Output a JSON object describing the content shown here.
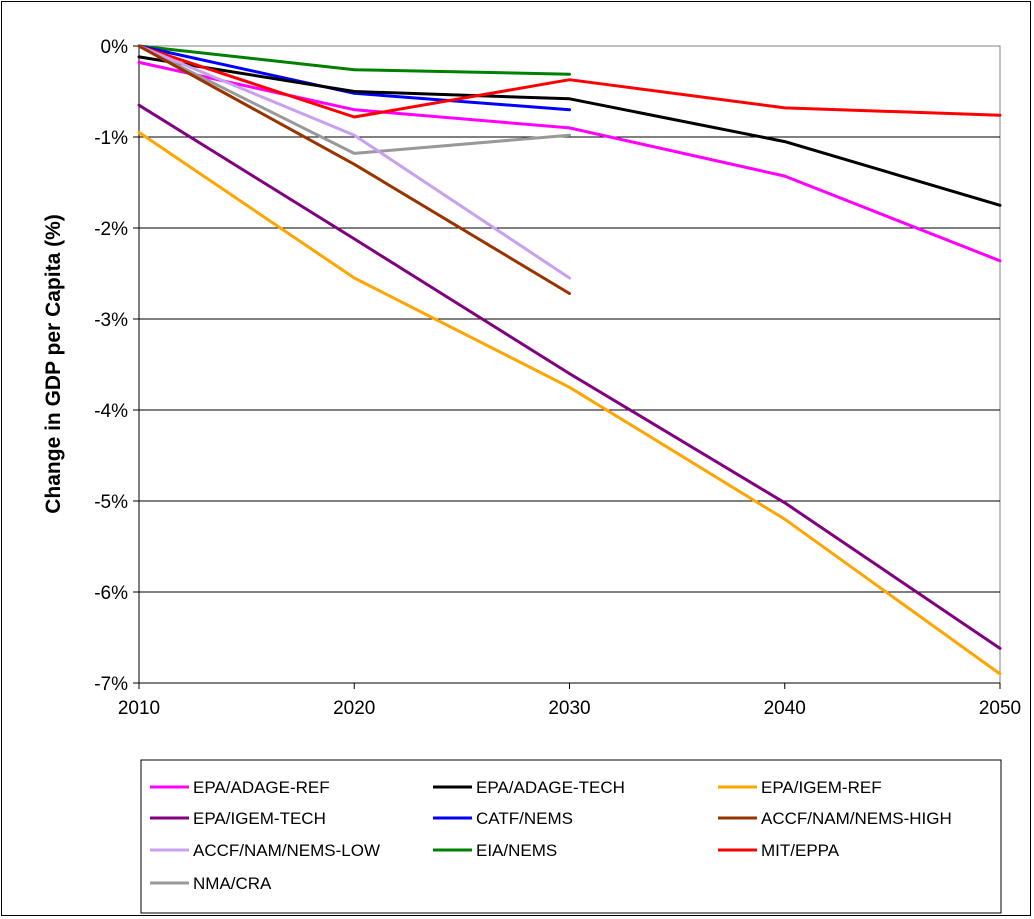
{
  "chart_data": {
    "type": "line",
    "title": "",
    "xlabel": "",
    "ylabel": "Change in GDP per Capita (%)",
    "x": [
      2010,
      2020,
      2030,
      2040,
      2050
    ],
    "x_ticks": [
      "2010",
      "2020",
      "2030",
      "2040",
      "2050"
    ],
    "y_ticks": [
      {
        "value": 0,
        "label": "0%"
      },
      {
        "value": -1,
        "label": "-1%"
      },
      {
        "value": -2,
        "label": "-2%"
      },
      {
        "value": -3,
        "label": "-3%"
      },
      {
        "value": -4,
        "label": "-4%"
      },
      {
        "value": -5,
        "label": "-5%"
      },
      {
        "value": -6,
        "label": "-6%"
      },
      {
        "value": -7,
        "label": "-7%"
      }
    ],
    "xlim": [
      2010,
      2050
    ],
    "ylim": [
      -7,
      0
    ],
    "grid": "horizontal",
    "legend_position": "bottom",
    "series": [
      {
        "name": "EPA/ADAGE-REF",
        "color": "#ff00ff",
        "points": [
          [
            2010,
            -0.18
          ],
          [
            2020,
            -0.7
          ],
          [
            2030,
            -0.9
          ],
          [
            2040,
            -1.43
          ],
          [
            2050,
            -2.36
          ]
        ]
      },
      {
        "name": "EPA/ADAGE-TECH",
        "color": "#000000",
        "points": [
          [
            2010,
            -0.12
          ],
          [
            2020,
            -0.5
          ],
          [
            2030,
            -0.58
          ],
          [
            2040,
            -1.05
          ],
          [
            2050,
            -1.75
          ]
        ]
      },
      {
        "name": "EPA/IGEM-REF",
        "color": "#ffa500",
        "points": [
          [
            2010,
            -0.95
          ],
          [
            2020,
            -2.55
          ],
          [
            2030,
            -3.75
          ],
          [
            2040,
            -5.2
          ],
          [
            2050,
            -6.9
          ]
        ]
      },
      {
        "name": "EPA/IGEM-TECH",
        "color": "#800080",
        "points": [
          [
            2010,
            -0.65
          ],
          [
            2020,
            -2.12
          ],
          [
            2030,
            -3.6
          ],
          [
            2040,
            -5.02
          ],
          [
            2050,
            -6.62
          ]
        ]
      },
      {
        "name": "CATF/NEMS",
        "color": "#0000ff",
        "points": [
          [
            2010,
            0
          ],
          [
            2020,
            -0.52
          ],
          [
            2030,
            -0.7
          ]
        ]
      },
      {
        "name": "ACCF/NAM/NEMS-HIGH",
        "color": "#993300",
        "points": [
          [
            2010,
            0
          ],
          [
            2020,
            -1.3
          ],
          [
            2030,
            -2.72
          ]
        ]
      },
      {
        "name": "ACCF/NAM/NEMS-LOW",
        "color": "#c8a0f0",
        "points": [
          [
            2010,
            0
          ],
          [
            2020,
            -0.98
          ],
          [
            2030,
            -2.55
          ]
        ]
      },
      {
        "name": "EIA/NEMS",
        "color": "#008000",
        "points": [
          [
            2010,
            0
          ],
          [
            2020,
            -0.26
          ],
          [
            2030,
            -0.31
          ]
        ]
      },
      {
        "name": "MIT/EPPA",
        "color": "#ff0000",
        "points": [
          [
            2010,
            0
          ],
          [
            2020,
            -0.78
          ],
          [
            2030,
            -0.37
          ],
          [
            2040,
            -0.68
          ],
          [
            2050,
            -0.76
          ]
        ]
      },
      {
        "name": "NMA/CRA",
        "color": "#999999",
        "points": [
          [
            2010,
            0
          ],
          [
            2020,
            -1.18
          ],
          [
            2030,
            -0.98
          ]
        ]
      }
    ]
  }
}
